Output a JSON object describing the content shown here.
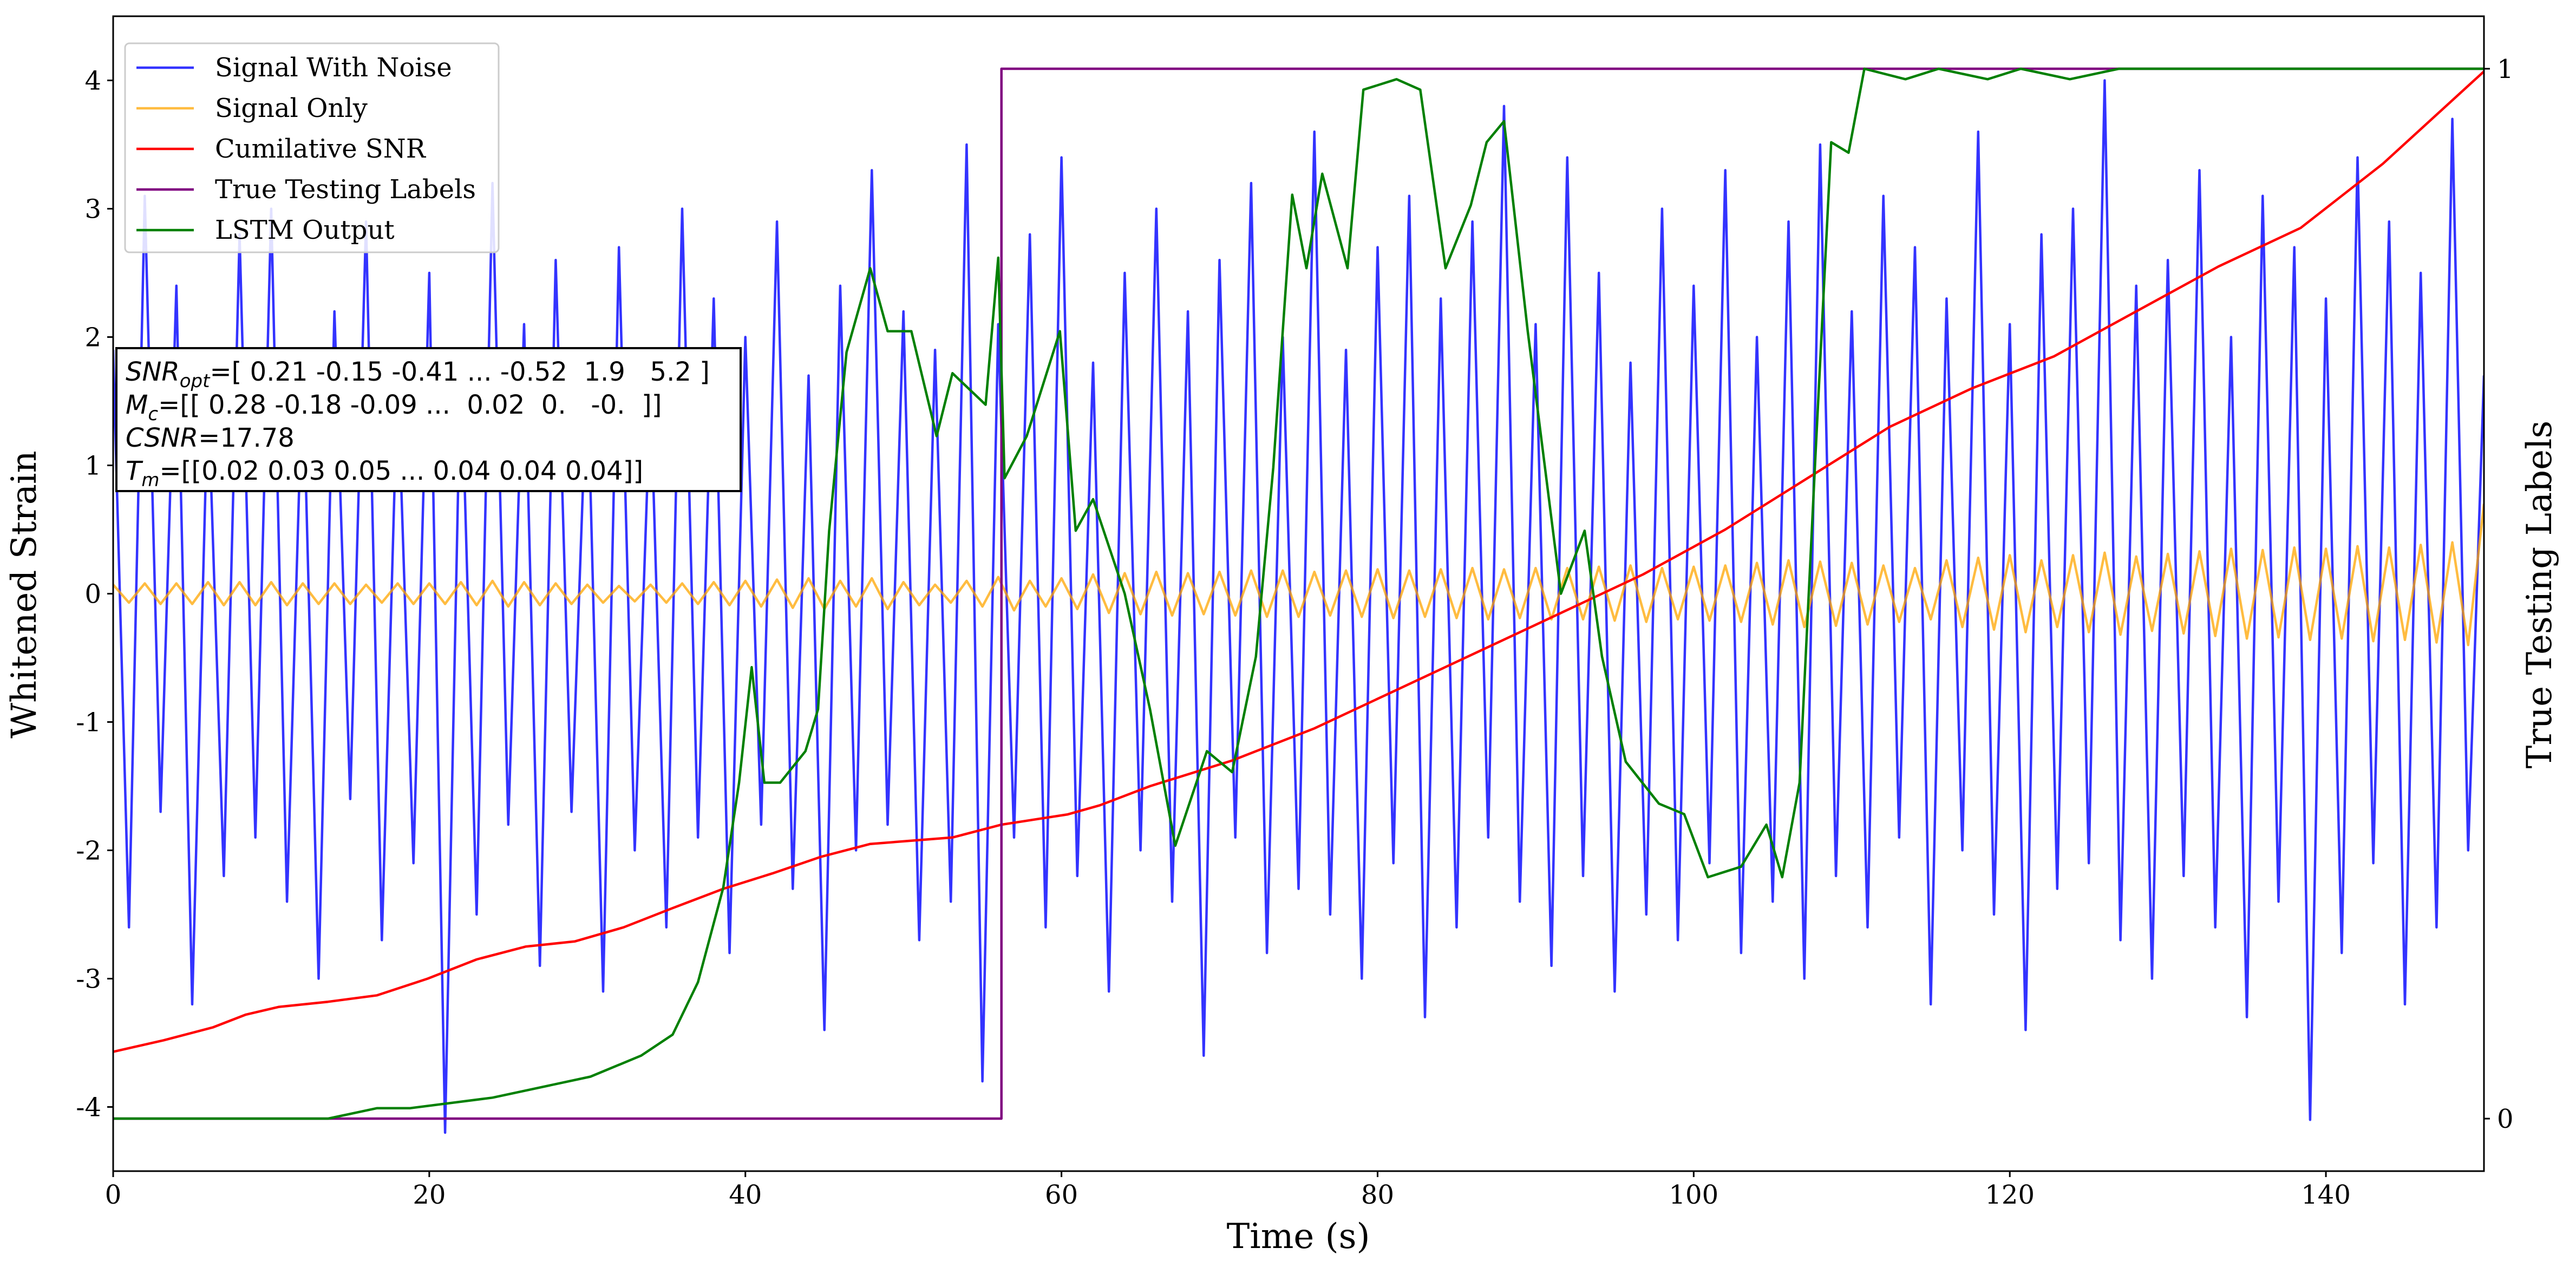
{
  "chart_data": {
    "type": "line",
    "xlabel": "Time (s)",
    "ylabel": "Whitened Strain",
    "y2label": "True Testing Labels",
    "xlim": [
      0,
      150
    ],
    "xticks": [
      0,
      20,
      40,
      60,
      80,
      100,
      120,
      140
    ],
    "ylim": [
      -4.5,
      4.5
    ],
    "yticks": [
      -4,
      -3,
      -2,
      -1,
      0,
      1,
      2,
      3,
      4
    ],
    "y2lim": [
      -0.05,
      1.05
    ],
    "y2ticks": [
      0,
      1
    ],
    "grid": false,
    "legend": "upper left",
    "x": [
      0,
      1,
      2,
      3,
      4,
      5,
      6,
      7,
      8,
      9,
      10,
      11,
      12,
      13,
      14,
      15,
      16,
      17,
      18,
      19,
      20,
      21,
      22,
      23,
      24,
      25,
      26,
      27,
      28,
      29,
      30,
      31,
      32,
      33,
      34,
      35,
      36,
      37,
      38,
      39,
      40,
      41,
      42,
      43,
      44,
      45,
      46,
      47,
      48,
      49,
      50,
      51,
      52,
      53,
      54,
      55,
      56,
      57,
      58,
      59,
      60,
      61,
      62,
      63,
      64,
      65,
      66,
      67,
      68,
      69,
      70,
      71,
      72,
      73,
      74,
      75,
      76,
      77,
      78,
      79,
      80,
      81,
      82,
      83,
      84,
      85,
      86,
      87,
      88,
      89,
      90,
      91,
      92,
      93,
      94,
      95,
      96,
      97,
      98,
      99,
      100,
      101,
      102,
      103,
      104,
      105,
      106,
      107,
      108,
      109,
      110,
      111,
      112,
      113,
      114,
      115,
      116,
      117,
      118,
      119,
      120,
      121,
      122,
      123,
      124,
      125,
      126,
      127,
      128,
      129,
      130,
      131,
      132,
      133,
      134,
      135,
      136,
      137,
      138,
      139,
      140,
      141,
      142,
      143,
      144,
      145,
      146,
      147,
      148,
      149,
      150
    ],
    "series": [
      {
        "name": "Signal With Noise",
        "color": "#0000ff",
        "opacity": 0.8,
        "values": [
          1.9,
          -2.6,
          3.1,
          -1.7,
          2.4,
          -3.2,
          1.6,
          -2.2,
          2.8,
          -1.9,
          3.0,
          -2.4,
          1.8,
          -3.0,
          2.2,
          -1.6,
          2.9,
          -2.7,
          1.7,
          -2.1,
          2.5,
          -4.2,
          1.9,
          -2.5,
          3.2,
          -1.8,
          2.1,
          -2.9,
          2.6,
          -1.7,
          1.8,
          -3.1,
          2.7,
          -2.0,
          1.6,
          -2.6,
          3.0,
          -1.9,
          2.3,
          -2.8,
          2.0,
          -1.8,
          2.9,
          -2.3,
          1.7,
          -3.4,
          2.4,
          -2.0,
          3.3,
          -1.8,
          2.2,
          -2.7,
          1.9,
          -2.4,
          3.5,
          -3.8,
          2.1,
          -1.9,
          2.8,
          -2.6,
          3.4,
          -2.2,
          1.8,
          -3.1,
          2.5,
          -2.0,
          3.0,
          -2.4,
          2.2,
          -3.6,
          2.6,
          -1.9,
          3.2,
          -2.8,
          2.0,
          -2.3,
          3.6,
          -2.5,
          1.9,
          -3.0,
          2.7,
          -2.1,
          3.1,
          -3.3,
          2.3,
          -2.6,
          2.9,
          -1.9,
          3.8,
          -2.4,
          2.1,
          -2.9,
          3.4,
          -2.2,
          2.5,
          -3.1,
          1.8,
          -2.5,
          3.0,
          -2.7,
          2.4,
          -2.1,
          3.3,
          -2.8,
          2.0,
          -2.4,
          2.9,
          -3.0,
          3.5,
          -2.2,
          2.2,
          -2.6,
          3.1,
          -1.9,
          2.7,
          -3.2,
          2.3,
          -2.0,
          3.6,
          -2.5,
          2.1,
          -3.4,
          2.8,
          -2.3,
          3.0,
          -2.1,
          4.0,
          -2.7,
          2.4,
          -3.0,
          2.6,
          -2.2,
          3.3,
          -2.6,
          2.0,
          -3.3,
          3.1,
          -2.4,
          2.7,
          -4.1,
          2.3,
          -2.8,
          3.4,
          -2.1,
          2.9,
          -3.2,
          2.5,
          -2.6,
          3.7,
          -2.0,
          1.7
        ]
      },
      {
        "name": "Signal Only",
        "color": "#ffa500",
        "opacity": 0.75,
        "values": [
          0.07,
          -0.07,
          0.08,
          -0.08,
          0.08,
          -0.08,
          0.09,
          -0.09,
          0.09,
          -0.09,
          0.09,
          -0.09,
          0.08,
          -0.08,
          0.08,
          -0.08,
          0.07,
          -0.07,
          0.08,
          -0.08,
          0.08,
          -0.08,
          0.09,
          -0.09,
          0.1,
          -0.1,
          0.09,
          -0.09,
          0.08,
          -0.08,
          0.07,
          -0.07,
          0.06,
          -0.06,
          0.07,
          -0.07,
          0.08,
          -0.08,
          0.09,
          -0.09,
          0.1,
          -0.1,
          0.11,
          -0.11,
          0.12,
          -0.12,
          0.1,
          -0.1,
          0.12,
          -0.12,
          0.09,
          -0.09,
          0.07,
          -0.07,
          0.1,
          -0.1,
          0.13,
          -0.13,
          0.1,
          -0.1,
          0.12,
          -0.12,
          0.15,
          -0.15,
          0.16,
          -0.16,
          0.17,
          -0.17,
          0.16,
          -0.16,
          0.17,
          -0.17,
          0.18,
          -0.18,
          0.18,
          -0.18,
          0.17,
          -0.17,
          0.18,
          -0.18,
          0.19,
          -0.19,
          0.18,
          -0.18,
          0.19,
          -0.19,
          0.2,
          -0.2,
          0.19,
          -0.19,
          0.2,
          -0.2,
          0.2,
          -0.2,
          0.21,
          -0.21,
          0.22,
          -0.22,
          0.2,
          -0.2,
          0.21,
          -0.21,
          0.22,
          -0.22,
          0.24,
          -0.24,
          0.26,
          -0.26,
          0.25,
          -0.25,
          0.24,
          -0.24,
          0.22,
          -0.22,
          0.2,
          -0.2,
          0.26,
          -0.26,
          0.28,
          -0.28,
          0.3,
          -0.3,
          0.26,
          -0.26,
          0.3,
          -0.3,
          0.32,
          -0.32,
          0.29,
          -0.29,
          0.31,
          -0.31,
          0.33,
          -0.33,
          0.35,
          -0.35,
          0.34,
          -0.34,
          0.36,
          -0.36,
          0.35,
          -0.35,
          0.37,
          -0.37,
          0.36,
          -0.36,
          0.38,
          -0.38,
          0.4,
          -0.4,
          0.7
        ]
      },
      {
        "name": "Cumilative SNR",
        "color": "#ff0000",
        "opacity": 1,
        "x": [
          0,
          3.2,
          6.3,
          8.4,
          10.5,
          13.6,
          16.7,
          19.9,
          23,
          26.1,
          29.2,
          32.3,
          35.4,
          38.6,
          41.7,
          44.8,
          47.9,
          53.1,
          56.2,
          60.4,
          62.4,
          65.6,
          70.8,
          76,
          81.2,
          86.4,
          91.6,
          96.8,
          102,
          107.2,
          112.4,
          117.6,
          122.8,
          128,
          133.2,
          138.4,
          143.6,
          150
        ],
        "values": [
          -3.57,
          -3.48,
          -3.38,
          -3.28,
          -3.22,
          -3.18,
          -3.13,
          -3.0,
          -2.85,
          -2.75,
          -2.71,
          -2.6,
          -2.45,
          -2.3,
          -2.18,
          -2.05,
          -1.95,
          -1.9,
          -1.8,
          -1.72,
          -1.65,
          -1.5,
          -1.3,
          -1.05,
          -0.75,
          -0.45,
          -0.15,
          0.15,
          0.5,
          0.9,
          1.3,
          1.6,
          1.85,
          2.2,
          2.55,
          2.85,
          3.35,
          4.07
        ]
      },
      {
        "name": "True Testing Labels",
        "color": "#800080",
        "opacity": 1,
        "axis": "y2",
        "x": [
          0,
          56.2,
          56.2,
          150
        ],
        "values": [
          0,
          0,
          1,
          1
        ]
      },
      {
        "name": "LSTM Output",
        "color": "#008000",
        "opacity": 1,
        "axis": "y2",
        "x": [
          0,
          13.6,
          16.7,
          18.8,
          24,
          27.1,
          30.2,
          33.4,
          35.4,
          37,
          38.6,
          39.6,
          40.4,
          41.2,
          42.2,
          43.8,
          44.6,
          45.3,
          46.4,
          47.9,
          49,
          50.5,
          52.1,
          53.1,
          55.2,
          56,
          56.4,
          57.8,
          59.9,
          60.9,
          62,
          64,
          65.6,
          67.2,
          69.2,
          70.8,
          72.3,
          73.4,
          74.6,
          75.5,
          76.5,
          78.1,
          79.1,
          81.2,
          82.7,
          84.3,
          85.9,
          86.9,
          88,
          89.5,
          91.6,
          93.1,
          94.2,
          95.7,
          97.8,
          99.4,
          100.9,
          103,
          104.6,
          105.6,
          106.7,
          107.7,
          108.7,
          109.8,
          110.8,
          113.4,
          115.5,
          118.6,
          120.7,
          123.8,
          126.9,
          150
        ],
        "values": [
          0,
          0,
          0.01,
          0.01,
          0.02,
          0.03,
          0.04,
          0.06,
          0.08,
          0.13,
          0.22,
          0.32,
          0.43,
          0.32,
          0.32,
          0.35,
          0.39,
          0.56,
          0.73,
          0.81,
          0.75,
          0.75,
          0.65,
          0.71,
          0.68,
          0.82,
          0.61,
          0.65,
          0.75,
          0.56,
          0.59,
          0.5,
          0.39,
          0.26,
          0.35,
          0.33,
          0.44,
          0.62,
          0.88,
          0.81,
          0.9,
          0.81,
          0.98,
          0.99,
          0.98,
          0.81,
          0.87,
          0.93,
          0.95,
          0.75,
          0.5,
          0.56,
          0.44,
          0.34,
          0.3,
          0.29,
          0.23,
          0.24,
          0.28,
          0.23,
          0.32,
          0.63,
          0.93,
          0.92,
          1.0,
          0.99,
          1.0,
          0.99,
          1.0,
          0.99,
          1.0,
          1.0
        ]
      }
    ],
    "annotation": [
      {
        "symbol": "SNR",
        "sub": "opt",
        "text": "=[ 0.21 -0.15 -0.41 ... -0.52  1.9   5.2 ]"
      },
      {
        "symbol": "M",
        "sub": "c",
        "text": "=[[ 0.28 -0.18 -0.09 ...  0.02  0.   -0.  ]]"
      },
      {
        "symbol": "CSNR",
        "text": "=17.78"
      },
      {
        "symbol": "T",
        "sub": "m",
        "text": "=[[0.02 0.03 0.05 ... 0.04 0.04 0.04]]"
      }
    ]
  }
}
